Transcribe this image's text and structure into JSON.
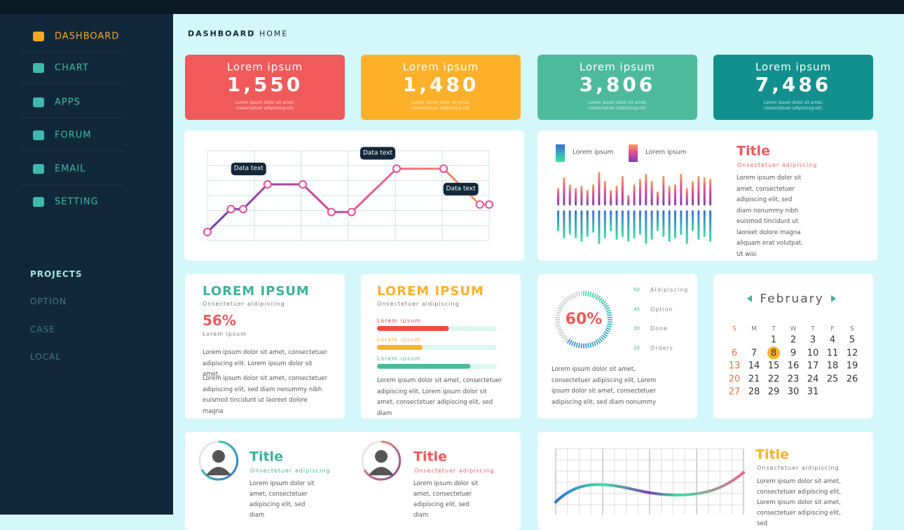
{
  "sidebar": {
    "menu": [
      "DASHBOARD",
      "CHART",
      "APPS",
      "FORUM",
      "EMAIL",
      "SETTING"
    ],
    "projects_title": "PROJECTS",
    "projects": [
      "OPTION",
      "CASE",
      "LOCAL"
    ]
  },
  "breadcrumb": {
    "section": "DASHBOARD",
    "separator": "/",
    "page": "HOME"
  },
  "stats": [
    {
      "label": "Lorem ipsum",
      "value": "1,550",
      "caption": "Lorem ipsum dolor sit amet, consectetuer adipiscing elit.",
      "color": "#f05a5a"
    },
    {
      "label": "Lorem ipsum",
      "value": "1,480",
      "caption": "Lorem ipsum dolor sit amet, consectetuer adipiscing elit.",
      "color": "#fdb12a"
    },
    {
      "label": "Lorem ipsum",
      "value": "3,806",
      "caption": "Lorem ipsum dolor sit amet, consectetuer adipiscing elit.",
      "color": "#4dbb9b"
    },
    {
      "label": "Lorem ipsum",
      "value": "7,486",
      "caption": "Lorem ipsum dolor sit amet, consectetuer adipiscing elit.",
      "color": "#12908e"
    }
  ],
  "line_chart": {
    "x": [
      0,
      0.5,
      0.76,
      1.28,
      2.03,
      2.64,
      3.07,
      4.03,
      5.03,
      5.8,
      6
    ],
    "values": [
      0.56,
      2.1,
      2.1,
      3.75,
      3.75,
      1.9,
      1.9,
      4.8,
      4.8,
      2.4,
      2.4
    ],
    "xlim": [
      0,
      6
    ],
    "ylim": [
      0,
      6
    ],
    "xticks": [
      0,
      1,
      2,
      3,
      4,
      5,
      6
    ],
    "yticks": [
      0,
      1,
      2,
      3,
      4,
      5,
      6
    ],
    "annotations": [
      null,
      null,
      null,
      "Data text",
      null,
      null,
      null,
      "Data text",
      null,
      "Data text",
      null
    ]
  },
  "equalizer": {
    "legend": [
      "Lorem ipsum",
      "Lorem ipsum"
    ],
    "ylim": [
      0,
      50
    ],
    "top": [
      25,
      40,
      30,
      25,
      28,
      22,
      30,
      48,
      35,
      22,
      28,
      42,
      15,
      30,
      38,
      45,
      35,
      20,
      42,
      28,
      30,
      45,
      25,
      35,
      42,
      40,
      38
    ],
    "bottom": [
      30,
      40,
      35,
      40,
      45,
      38,
      32,
      48,
      40,
      30,
      42,
      38,
      45,
      40,
      35,
      48,
      42,
      30,
      38,
      45,
      40,
      35,
      48,
      30,
      42,
      38,
      45
    ],
    "title": "Title",
    "subtitle": "Onsectetuer adipiscing",
    "text": "Lorem ipsum dolor sit amet, consectetuer adipiscing elit, sed diam nonummy nibh euismod tincidunt ut laoreet dolore magna aliquam erat volutpat. Ut wisi"
  },
  "summary": {
    "title": "LOREM IPSUM",
    "subtitle": "Onsectetuer aldipiscing",
    "value": "56%",
    "value_caption": "Lorem ipsum",
    "paragraphs": [
      "Lorem ipsum dolor sit amet, consectetuer adipiscing elit. Lorem ipsum dolor sit amet,",
      "Lorem ipsum dolor sit amet, consectetuer adipiscing elit, sed diam nonummy nibh euismod tincidunt ut laoreet dolore magna"
    ]
  },
  "progress": {
    "title": "LOREM IPSUM",
    "subtitle": "Onsectetuer aldipiscing",
    "bars": [
      {
        "label": "Lorem ipsum",
        "value": 60,
        "color": "#f24b3a"
      },
      {
        "label": "Lorem ipsum",
        "value": 38,
        "color": "#fdb12a"
      },
      {
        "label": "Lorem ipsum",
        "value": 78,
        "color": "#4dbb9b"
      }
    ],
    "text": "Lorem ipsum dolor sit amet, consectetuer adipiscing elit, Lorem ipsum dolor sit amet, consectetuer adipiscing elit, sed diam"
  },
  "donut": {
    "value": 60,
    "label": "60%",
    "legend": [
      {
        "value": "50",
        "label": "Aldipiscing"
      },
      {
        "value": "40",
        "label": "Option"
      },
      {
        "value": "30",
        "label": "Done"
      },
      {
        "value": "20",
        "label": "Orders"
      }
    ],
    "text": "Lorem ipsum dolor sit amet, consectetuer adipiscing elit, Lorem ipsum dolor sit amet, consectetuer adipiscing elit, sed diam nonummy"
  },
  "calendar": {
    "month": "February",
    "weekdays": [
      "S",
      "M",
      "T",
      "W",
      "T",
      "F",
      "S"
    ],
    "weeks": [
      [
        "1",
        "2",
        "3",
        "4",
        "5"
      ],
      [
        "6",
        "7",
        "8",
        "9",
        "10",
        "11",
        "12"
      ],
      [
        "13",
        "14",
        "15",
        "16",
        "17",
        "18",
        "19"
      ],
      [
        "20",
        "21",
        "22",
        "23",
        "24",
        "25",
        "26"
      ],
      [
        "27",
        "28",
        "29",
        "30",
        "31"
      ]
    ]
  },
  "profiles": [
    {
      "title": "Title",
      "subtitle": "Onsectetuer adipiscing",
      "text": "Lorem ipsum dolor sit amet, consectetuer adipiscing elit, sed diam"
    },
    {
      "title": "Title",
      "subtitle": "Onsectetuer adipiscing",
      "text": "Lorem ipsum dolor sit amet, consectetuer adipiscing elit, sed diam"
    }
  ],
  "wave_card": {
    "title": "Title",
    "subtitle": "Onsectetuer aldipiscing",
    "text": "Lorem ipsum dolor sit amet, consectetuer adipiscing elit, Lorem ipsum dolor sit amet, consectetuer adipiscing elit, sed"
  }
}
